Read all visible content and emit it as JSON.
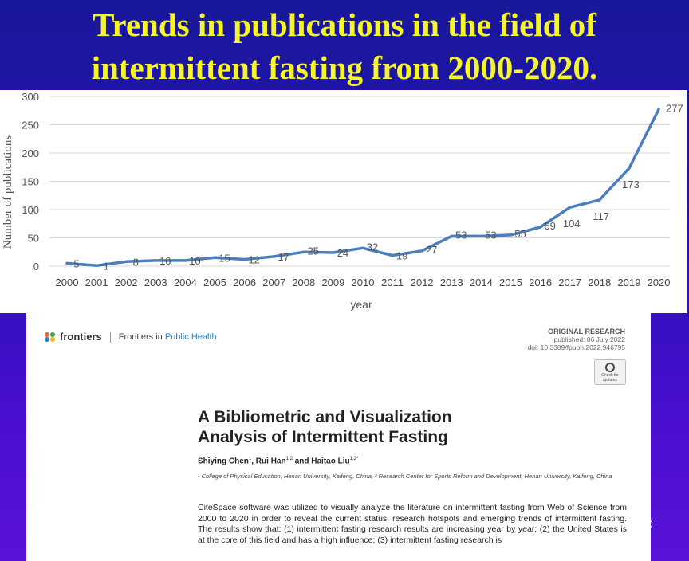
{
  "slide": {
    "title_line1": "Trends in publications in the field of",
    "title_line2": "intermittent fasting from 2000-2020.",
    "title_color": "#f5f52a",
    "page_number": "0"
  },
  "chart_data": {
    "type": "line",
    "xlabel": "year",
    "ylabel": "Number of publications",
    "ylim": [
      0,
      300
    ],
    "yticks": [
      0,
      50,
      100,
      150,
      200,
      250,
      300
    ],
    "grid": "horizontal",
    "line_color": "#4a7ebf",
    "x": [
      "2000",
      "2001",
      "2002",
      "2003",
      "2004",
      "2005",
      "2006",
      "2007",
      "2008",
      "2009",
      "2010",
      "2011",
      "2012",
      "2013",
      "2014",
      "2015",
      "2016",
      "2017",
      "2018",
      "2019",
      "2020"
    ],
    "values": [
      5,
      1,
      8,
      10,
      10,
      15,
      12,
      17,
      25,
      24,
      32,
      19,
      27,
      53,
      53,
      55,
      69,
      104,
      117,
      173,
      277
    ]
  },
  "paper": {
    "brand": "frontiers",
    "journal_prefix": "Frontiers in ",
    "journal_highlight": "Public Health",
    "article_type": "ORIGINAL RESEARCH",
    "published": "published: 06 July 2022",
    "doi": "doi: 10.3389/fpubh.2022.946795",
    "check_label": "Check for updates",
    "title_line1": "A Bibliometric and Visualization",
    "title_line2": "Analysis of Intermittent Fasting",
    "author1": "Shiying Chen",
    "author1_sup": "1",
    "author2": ", Rui Han",
    "author2_sup": "1,2",
    "author3": " and Haitao Liu",
    "author3_sup": "1,2*",
    "affiliations": "¹ College of Physical Education, Henan University, Kaifeng, China, ² Research Center for Sports Reform and Development, Henan University, Kaifeng, China",
    "abstract": "CiteSpace software was utilized to visually analyze the literature on intermittent fasting from Web of Science from 2000 to 2020 in order to reveal the current status, research hotspots and emerging trends of intermittent fasting. The results show that: (1) intermittent fasting research results are increasing year by year; (2) the United States is at the core of this field and has a high influence; (3) intermittent fasting research is"
  }
}
